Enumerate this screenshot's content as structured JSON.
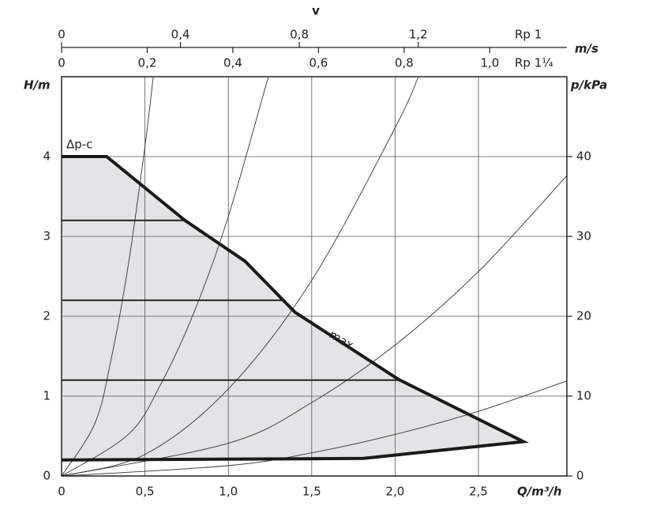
{
  "chart_data": {
    "type": "line",
    "x_label": "Q/m³/h",
    "y_label": "H/m",
    "y2_label": "p/kPa",
    "top_axis_title": "v",
    "top_axis_unit": "m/s",
    "xlim": [
      0,
      3.03
    ],
    "xticks": [
      0,
      {
        "value": 0.5,
        "label": "0,5"
      },
      {
        "value": 1,
        "label": "1,0"
      },
      {
        "value": 1.5,
        "label": "1,5"
      },
      {
        "value": 2,
        "label": "2,0"
      },
      {
        "value": 2.5,
        "label": "2,5"
      }
    ],
    "ylim": [
      0,
      5
    ],
    "yticks": [
      0,
      1,
      2,
      3,
      4
    ],
    "y2lim": [
      0,
      50
    ],
    "y2ticks": [
      0,
      10,
      20,
      30,
      40
    ],
    "top_axes": [
      {
        "name": "Rp 1",
        "xlim": [
          0,
          1.7
        ],
        "xticks": [
          0,
          {
            "value": 0.4,
            "label": "0,4"
          },
          {
            "value": 0.8,
            "label": "0,8"
          },
          {
            "value": 1.2,
            "label": "1,2"
          }
        ]
      },
      {
        "name": "Rp 1¼",
        "xlim": [
          0,
          1.18
        ],
        "xticks": [
          0,
          {
            "value": 0.2,
            "label": "0,2"
          },
          {
            "value": 0.4,
            "label": "0,4"
          },
          {
            "value": 0.6,
            "label": "0,6"
          },
          {
            "value": 0.8,
            "label": "0,8"
          },
          {
            "value": 1.0,
            "label": "1,0"
          }
        ]
      }
    ],
    "series": [
      {
        "name": "max.",
        "color": "#1a1a1a",
        "x": [
          0,
          0.27,
          0.74,
          1.1,
          1.4,
          2.02,
          2.77,
          1.81,
          0
        ],
        "y": [
          4,
          4,
          3.2,
          2.69,
          2.05,
          1.21,
          0.43,
          0.22,
          0.2
        ]
      }
    ],
    "area_color": "#e4e4e6",
    "annotation": "Δp-c",
    "levels": [
      {
        "x": [
          0,
          0.74
        ],
        "y": [
          3.2,
          3.2
        ]
      },
      {
        "x": [
          0,
          1.34
        ],
        "y": [
          2.2,
          2.2
        ]
      },
      {
        "x": [
          0,
          2.02
        ],
        "y": [
          1.2,
          1.2
        ]
      }
    ],
    "system_curves": [
      {
        "x": [
          0,
          0.2,
          0.3,
          0.4,
          0.5,
          0.55
        ],
        "y": [
          0,
          0.66,
          1.49,
          2.64,
          4.13,
          5.0
        ]
      },
      {
        "x": [
          0,
          0.4,
          0.6,
          0.8,
          1.0,
          1.24
        ],
        "y": [
          0,
          0.52,
          1.17,
          2.08,
          3.25,
          5.0
        ]
      },
      {
        "x": [
          0,
          0.5,
          1.0,
          1.5,
          2.0,
          2.14
        ],
        "y": [
          0,
          0.27,
          1.09,
          2.45,
          4.36,
          5.0
        ]
      },
      {
        "x": [
          0,
          1,
          1.5,
          2,
          2.5,
          3.03
        ],
        "y": [
          0,
          0.41,
          0.92,
          1.64,
          2.56,
          3.76
        ]
      },
      {
        "x": [
          0,
          1,
          1.5,
          2,
          2.5,
          3.03
        ],
        "y": [
          0,
          0.13,
          0.29,
          0.52,
          0.81,
          1.19
        ]
      }
    ],
    "grid": true
  }
}
